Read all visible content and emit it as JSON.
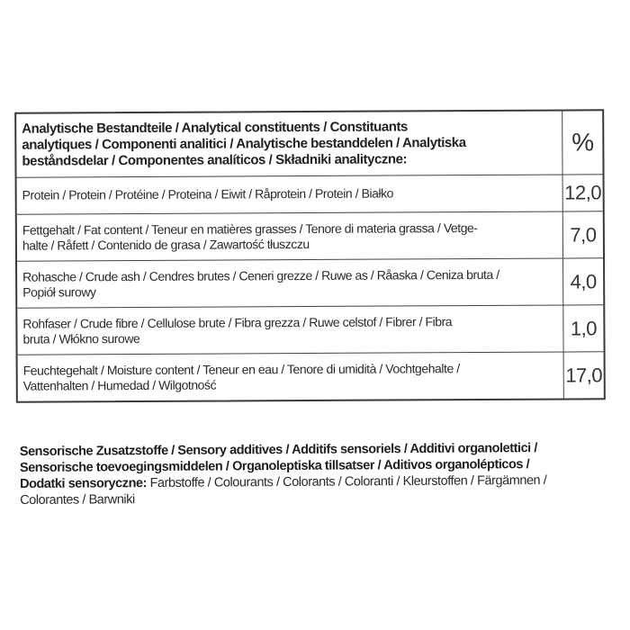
{
  "table": {
    "header": {
      "lines": [
        "Analytische Bestandteile / Analytical constituents / Constituants",
        "analytiques / Componenti analitici / Analytische bestanddelen / Analytiska",
        "beståndsdelar / Componentes analíticos / Składniki analityczne:"
      ],
      "unit": "%"
    },
    "rows": [
      {
        "lines": [
          "Protein / Protein / Protéine / Proteina / Eiwit / Råprotein / Protein / Białko"
        ],
        "value": "12,0"
      },
      {
        "lines": [
          "Fettgehalt / Fat content / Teneur en matières grasses / Tenore di materia grassa / Vetge-",
          "halte / Råfett / Contenido de grasa / Zawartość tłuszczu"
        ],
        "value": "7,0"
      },
      {
        "lines": [
          "Rohasche / Crude ash / Cendres brutes / Ceneri grezze / Ruwe as / Råaska / Ceniza bruta /",
          "Popiół surowy"
        ],
        "value": "4,0"
      },
      {
        "lines": [
          "Rohfaser / Crude fibre / Cellulose brute / Fibra grezza / Ruwe celstof / Fibrer / Fibra",
          "bruta / Włókno surowe"
        ],
        "value": "1,0"
      },
      {
        "lines": [
          "Feuchtegehalt / Moisture content / Teneur en eau / Tenore di umidità / Vochtgehalte /",
          "Vattenhalten / Humedad / Wilgotność"
        ],
        "value": "17,0"
      }
    ]
  },
  "additives": {
    "bold_lines": [
      "Sensorische Zusatzstoffe / Sensory additives / Additifs sensoriels / Additivi organolettici /",
      "Sensorische toevoegingsmiddelen / Organoleptiska tillsatser / Aditivos organolépticos /",
      "Dodatki sensoryczne:"
    ],
    "line3_rest": " Farbstoffe / Colourants / Colorants / Coloranti / Kleurstoffen / Färgämnen /",
    "line4": "Colorantes / Barwniki"
  }
}
